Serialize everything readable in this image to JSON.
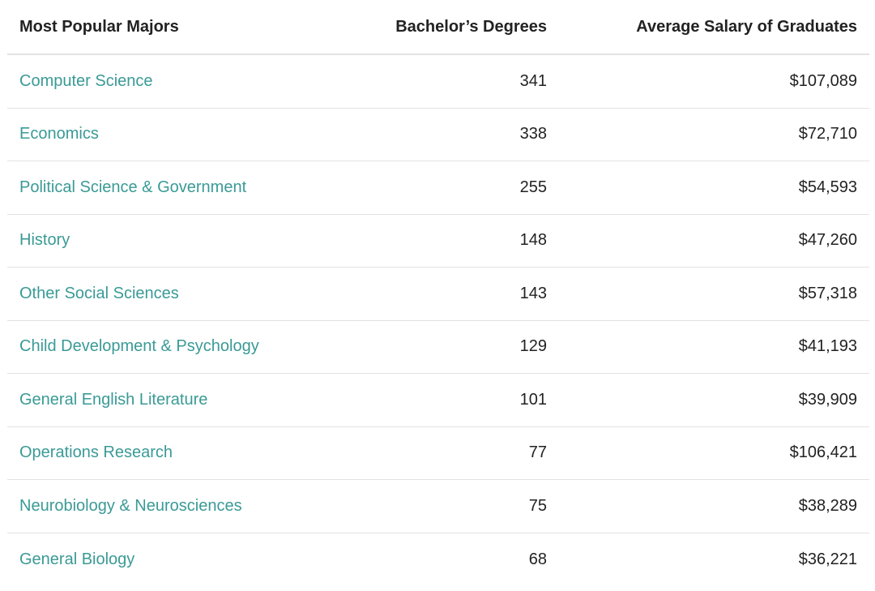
{
  "table": {
    "headers": {
      "major": "Most Popular Majors",
      "degrees": "Bachelor’s Degrees",
      "salary": "Average Salary of Graduates"
    },
    "rows": [
      {
        "major": "Computer Science",
        "degrees": "341",
        "salary": "$107,089"
      },
      {
        "major": "Economics",
        "degrees": "338",
        "salary": "$72,710"
      },
      {
        "major": "Political Science & Government",
        "degrees": "255",
        "salary": "$54,593"
      },
      {
        "major": "History",
        "degrees": "148",
        "salary": "$47,260"
      },
      {
        "major": "Other Social Sciences",
        "degrees": "143",
        "salary": "$57,318"
      },
      {
        "major": "Child Development & Psychology",
        "degrees": "129",
        "salary": "$41,193"
      },
      {
        "major": "General English Literature",
        "degrees": "101",
        "salary": "$39,909"
      },
      {
        "major": "Operations Research",
        "degrees": "77",
        "salary": "$106,421"
      },
      {
        "major": "Neurobiology & Neurosciences",
        "degrees": "75",
        "salary": "$38,289"
      },
      {
        "major": "General Biology",
        "degrees": "68",
        "salary": "$36,221"
      }
    ]
  },
  "colors": {
    "link": "#3a9a96",
    "text": "#222222",
    "divider": "#e2e2e2"
  }
}
